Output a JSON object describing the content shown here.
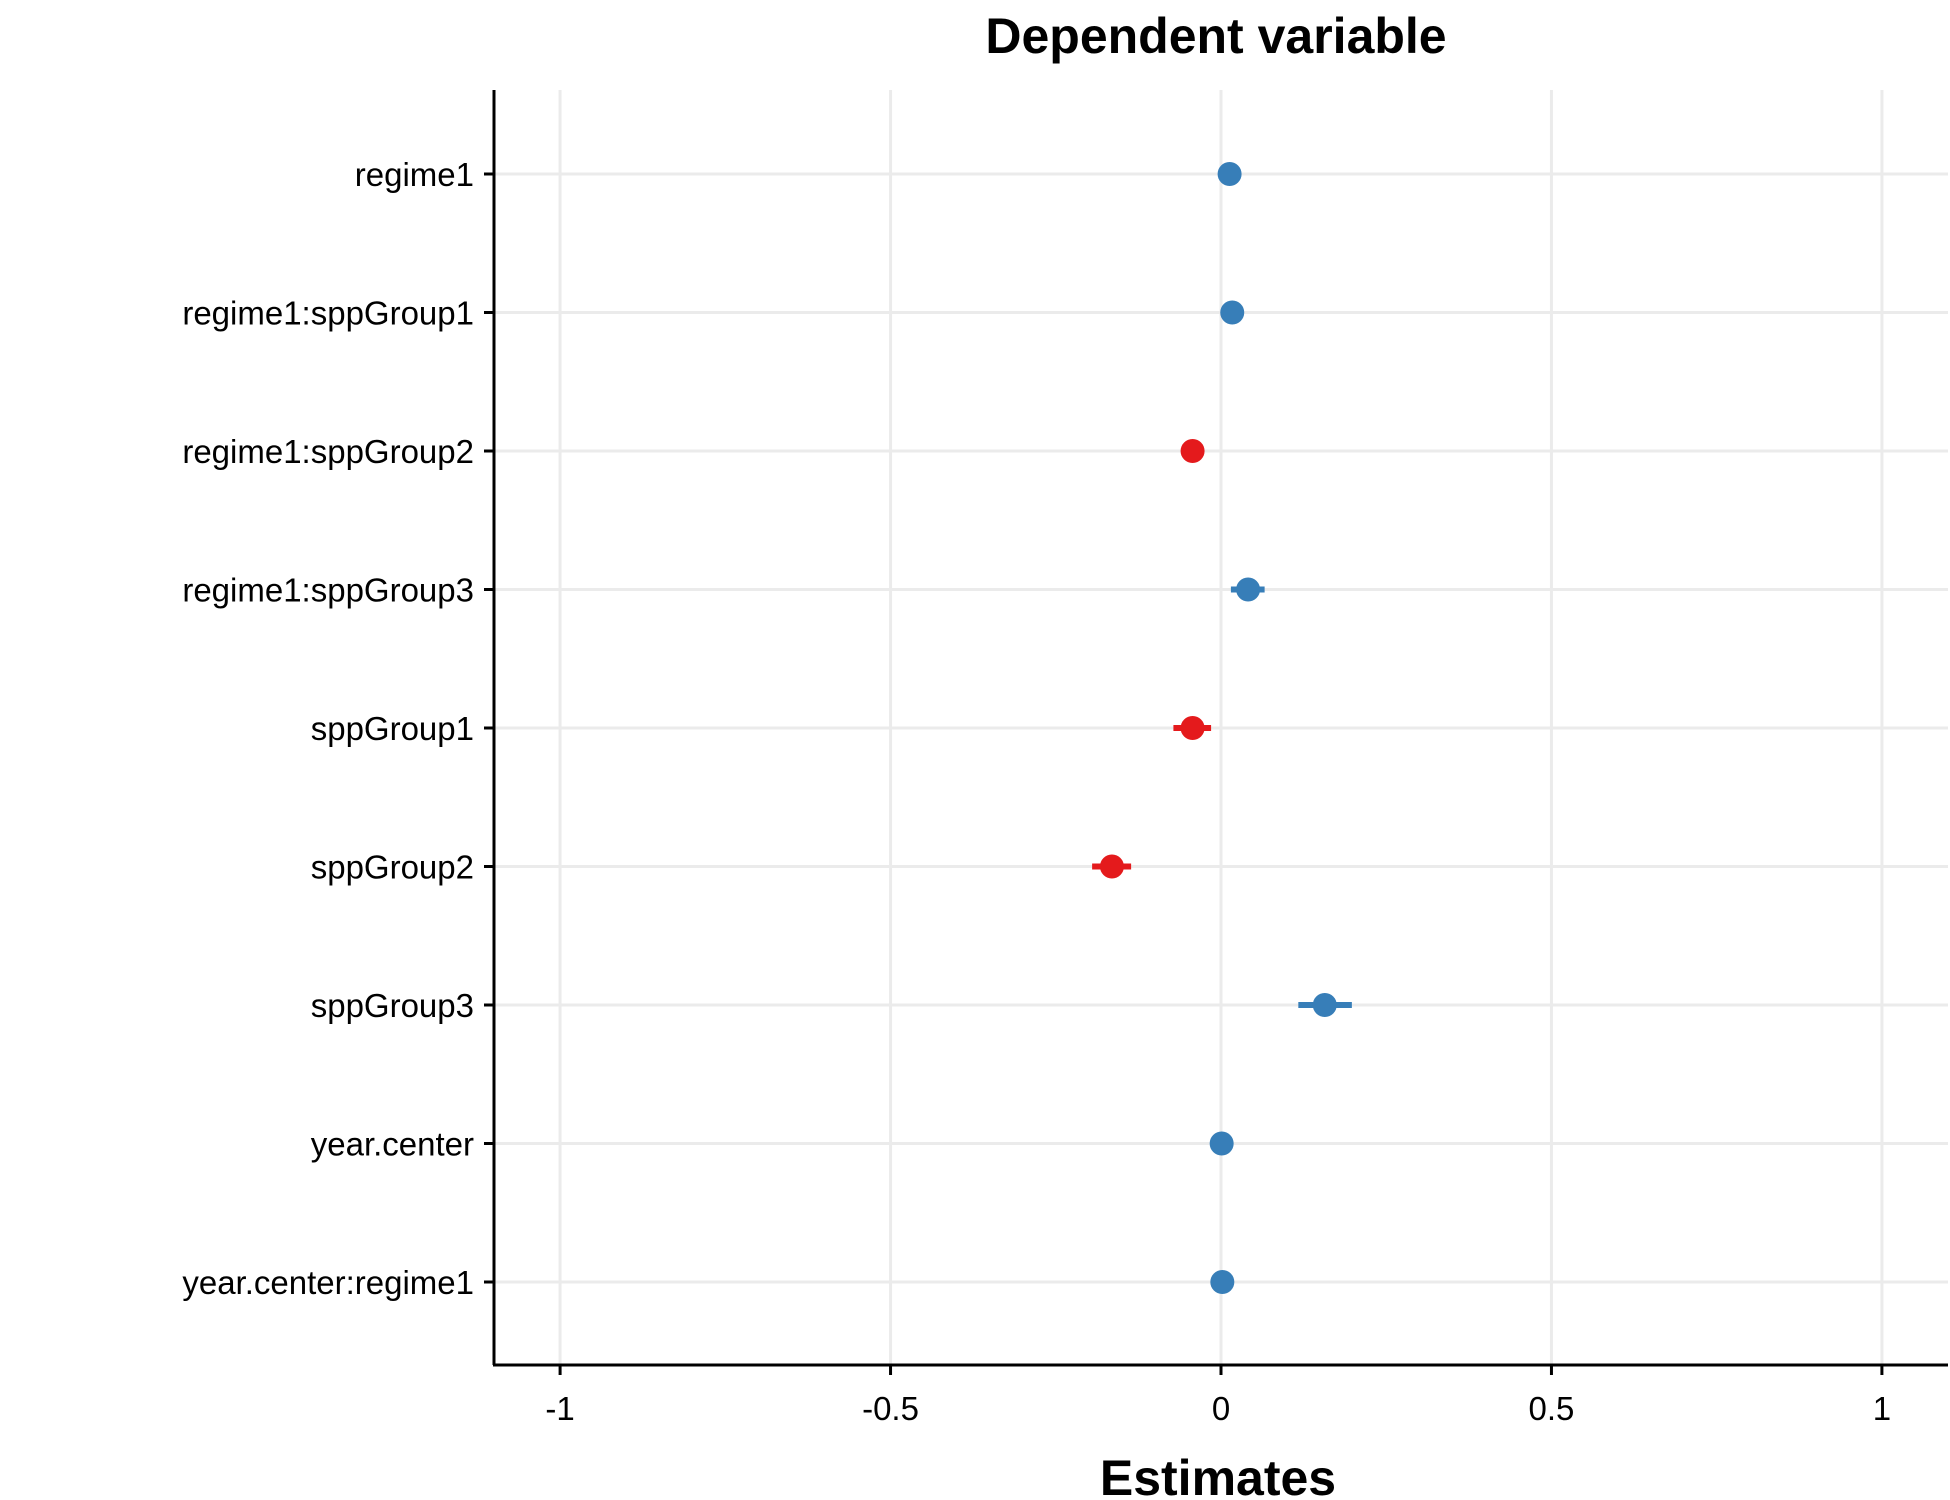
{
  "chart_data": {
    "type": "scatter",
    "title": "Dependent variable",
    "xlabel": "Estimates",
    "ylabel": "",
    "xlim": [
      -1.1,
      1.1
    ],
    "xticks": [
      -1,
      -0.5,
      0,
      0.5,
      1
    ],
    "xtick_labels": [
      "-1",
      "-0.5",
      "0",
      "0.5",
      "1"
    ],
    "grid": true,
    "colors": {
      "positive": "#377eb8",
      "negative": "#e41a1c"
    },
    "terms": [
      {
        "term": "regime1",
        "estimate": 0.013,
        "lower": 0.003,
        "upper": 0.023
      },
      {
        "term": "regime1:sppGroup1",
        "estimate": 0.017,
        "lower": 0.002,
        "upper": 0.034
      },
      {
        "term": "regime1:sppGroup2",
        "estimate": -0.043,
        "lower": -0.06,
        "upper": -0.027
      },
      {
        "term": "regime1:sppGroup3",
        "estimate": 0.041,
        "lower": 0.015,
        "upper": 0.066
      },
      {
        "term": "sppGroup1",
        "estimate": -0.043,
        "lower": -0.072,
        "upper": -0.015
      },
      {
        "term": "sppGroup2",
        "estimate": -0.165,
        "lower": -0.195,
        "upper": -0.136
      },
      {
        "term": "sppGroup3",
        "estimate": 0.157,
        "lower": 0.117,
        "upper": 0.198
      },
      {
        "term": "year.center",
        "estimate": 0.001,
        "lower": -0.002,
        "upper": 0.004
      },
      {
        "term": "year.center:regime1",
        "estimate": 0.002,
        "lower": -0.001,
        "upper": 0.005
      }
    ]
  }
}
